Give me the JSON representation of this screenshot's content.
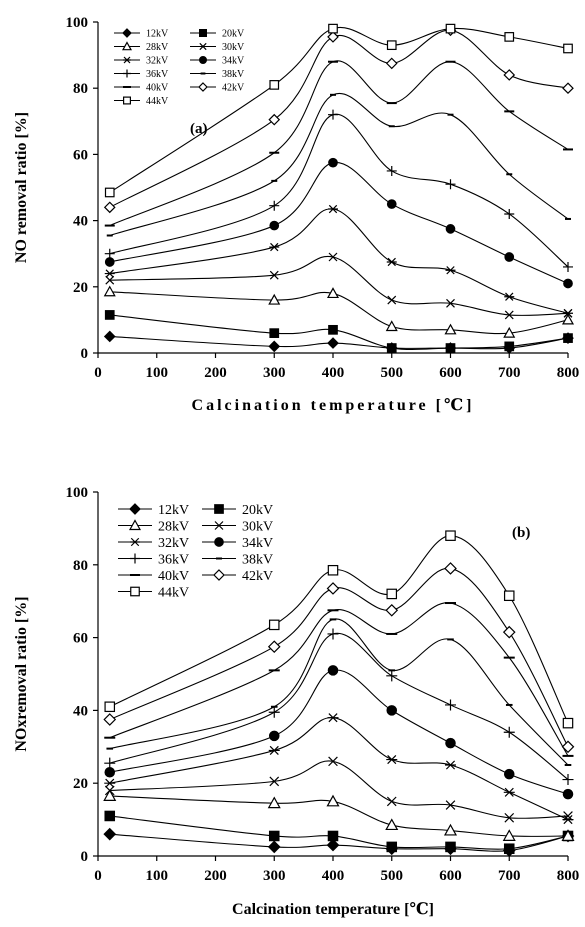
{
  "chart_data": [
    {
      "type": "line",
      "panel_label": "(a)",
      "xlabel": "Calcination temperature [℃]",
      "ylabel": "NO removal ratio [%]",
      "xlim": [
        0,
        800
      ],
      "ylim": [
        0,
        100
      ],
      "x_ticks": [
        "0",
        "100",
        "200",
        "300",
        "400",
        "500",
        "600",
        "700",
        "800"
      ],
      "y_ticks": [
        "0",
        "20",
        "40",
        "60",
        "80",
        "100"
      ],
      "grid": false,
      "legend_position": "top-left",
      "x": [
        20,
        300,
        400,
        500,
        600,
        700,
        800
      ],
      "series": [
        {
          "name": "12kV",
          "marker": "diamond-filled",
          "values": [
            5,
            2,
            3,
            1.5,
            1.5,
            1.5,
            4.5
          ]
        },
        {
          "name": "20kV",
          "marker": "square-filled",
          "values": [
            11.5,
            6,
            7,
            1.5,
            1.5,
            2,
            4.5
          ]
        },
        {
          "name": "28kV",
          "marker": "triangle-open",
          "values": [
            18.5,
            16,
            18,
            8,
            7,
            6,
            10
          ]
        },
        {
          "name": "30kV",
          "marker": "x",
          "values": [
            22,
            23.5,
            29,
            16,
            15,
            11.5,
            12
          ]
        },
        {
          "name": "32kV",
          "marker": "asterisk",
          "values": [
            24,
            32,
            43.5,
            27.5,
            25,
            17,
            12
          ]
        },
        {
          "name": "34kV",
          "marker": "circle-filled",
          "values": [
            27.5,
            38.5,
            57.5,
            45,
            37.5,
            29,
            21
          ]
        },
        {
          "name": "36kV",
          "marker": "plus",
          "values": [
            30,
            44.5,
            72,
            55,
            51,
            42,
            26
          ]
        },
        {
          "name": "38kV",
          "marker": "dash-short",
          "values": [
            35.5,
            52,
            78,
            68.5,
            72,
            54,
            40.5
          ]
        },
        {
          "name": "40kV",
          "marker": "dash",
          "values": [
            38.5,
            60.5,
            88,
            75.5,
            88,
            73,
            61.5
          ]
        },
        {
          "name": "42kV",
          "marker": "diamond-open",
          "values": [
            44,
            70.5,
            95.5,
            87.5,
            97.5,
            84,
            80
          ]
        },
        {
          "name": "44kV",
          "marker": "square-open",
          "values": [
            48.5,
            81,
            98,
            93,
            98,
            95.5,
            92
          ]
        }
      ]
    },
    {
      "type": "line",
      "panel_label": "(b)",
      "xlabel": "Calcination temperature [℃]",
      "ylabel": "NOxremoval ratio [%]",
      "xlim": [
        0,
        800
      ],
      "ylim": [
        0,
        100
      ],
      "x_ticks": [
        "0",
        "100",
        "200",
        "300",
        "400",
        "500",
        "600",
        "700",
        "800"
      ],
      "y_ticks": [
        "0",
        "20",
        "40",
        "60",
        "80",
        "100"
      ],
      "grid": false,
      "legend_position": "top-left",
      "x": [
        20,
        300,
        400,
        500,
        600,
        700,
        800
      ],
      "series": [
        {
          "name": "12kV",
          "marker": "diamond-filled",
          "values": [
            6,
            2.5,
            3,
            2,
            2,
            1.5,
            5.5
          ]
        },
        {
          "name": "20kV",
          "marker": "square-filled",
          "values": [
            11,
            5.5,
            5.5,
            2.5,
            2.5,
            2,
            5.5
          ]
        },
        {
          "name": "28kV",
          "marker": "triangle-open",
          "values": [
            16.5,
            14.5,
            15,
            8.5,
            7,
            5.5,
            5.5
          ]
        },
        {
          "name": "30kV",
          "marker": "x",
          "values": [
            18,
            20.5,
            26,
            15,
            14,
            10.5,
            11
          ]
        },
        {
          "name": "32kV",
          "marker": "asterisk",
          "values": [
            20,
            29,
            38,
            26.5,
            25,
            17.5,
            10
          ]
        },
        {
          "name": "34kV",
          "marker": "circle-filled",
          "values": [
            23,
            33,
            51,
            40,
            31,
            22.5,
            17
          ]
        },
        {
          "name": "36kV",
          "marker": "plus",
          "values": [
            25.5,
            39.5,
            61,
            49.5,
            41.5,
            34,
            21
          ]
        },
        {
          "name": "38kV",
          "marker": "dash-short",
          "values": [
            29.5,
            41,
            65,
            51,
            59.5,
            41.5,
            25
          ]
        },
        {
          "name": "40kV",
          "marker": "dash",
          "values": [
            32.5,
            51,
            67.5,
            61,
            69.5,
            54.5,
            27.5
          ]
        },
        {
          "name": "42kV",
          "marker": "diamond-open",
          "values": [
            37.5,
            57.5,
            73.5,
            67.5,
            79,
            61.5,
            30
          ]
        },
        {
          "name": "44kV",
          "marker": "square-open",
          "values": [
            41,
            63.5,
            78.5,
            72,
            88,
            71.5,
            36.5
          ]
        }
      ]
    }
  ]
}
